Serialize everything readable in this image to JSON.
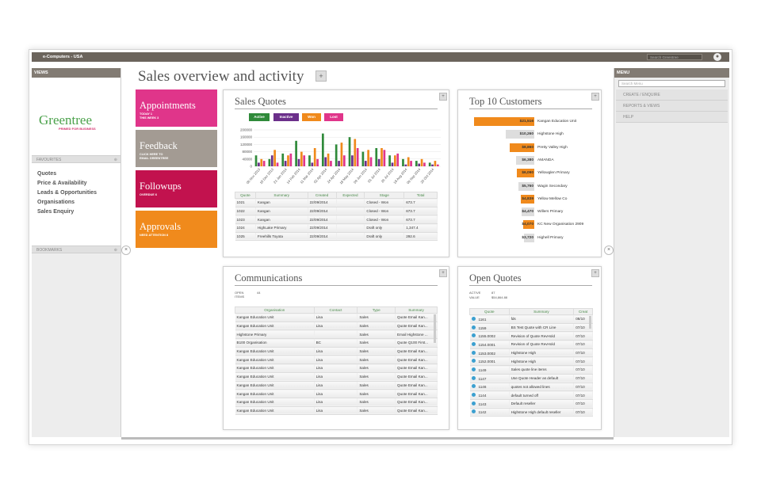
{
  "topbar": {
    "title": "e-Computers - USA",
    "search_placeholder": "Search Greentree",
    "user_icon": "user-icon"
  },
  "left": {
    "views_label": "VIEWS",
    "logo": "Greentree",
    "logo_tag": "PRIMED FOR BUSINESS",
    "favourites_label": "FAVOURITES",
    "favourites": [
      "Quotes",
      "Price & Availability",
      "Leads & Opportunities",
      "Organisations",
      "Sales Enquiry"
    ],
    "bookmarks_label": "BOOKMARKS",
    "collapse_symbol": "×"
  },
  "page": {
    "title": "Sales overview and activity",
    "add_symbol": "+"
  },
  "tiles": [
    {
      "title": "Appointments",
      "lines": [
        "TODAY  1",
        "THIS WEEK  3"
      ],
      "color": "#e0358a"
    },
    {
      "title": "Feedback",
      "lines": [
        "CLICK HERE TO",
        "EMAIL GREENTREE"
      ],
      "color": "#a39b93"
    },
    {
      "title": "Followups",
      "lines": [
        "OVERDUE  6"
      ],
      "color": "#c2124e"
    },
    {
      "title": "Approvals",
      "lines": [
        "NEED ATTENTION  8"
      ],
      "color": "#f08a1c"
    }
  ],
  "sales_quotes": {
    "title": "Sales Quotes",
    "legend": [
      {
        "label": "Active",
        "color": "#2f8a3a"
      },
      {
        "label": "Inactive",
        "color": "#6b2f8a"
      },
      {
        "label": "Won",
        "color": "#f08a1c"
      },
      {
        "label": "Lost",
        "color": "#e0358a"
      }
    ],
    "columns": [
      "Quote",
      "Summary",
      "Created",
      "Expected",
      "Stage",
      "Total"
    ],
    "rows": [
      [
        "1021",
        "Kangan",
        "22/09/2014",
        "",
        "Closed - Won",
        "673.7"
      ],
      [
        "1022",
        "Kangan",
        "22/09/2014",
        "",
        "Closed - Won",
        "673.7"
      ],
      [
        "1023",
        "Kangan",
        "22/09/2014",
        "",
        "Closed - Won",
        "673.7"
      ],
      [
        "1024",
        "HighLake Primary",
        "22/09/2014",
        "",
        "Draft only",
        "1,347.4"
      ],
      [
        "1025",
        "Freehills Toyota",
        "22/09/2014",
        "",
        "Draft only",
        "292.6"
      ]
    ]
  },
  "chart_data": {
    "type": "bar",
    "title": "Sales Quotes",
    "yticks": [
      "200000",
      "160000",
      "120000",
      "80000",
      "40000",
      "0"
    ],
    "ylim": [
      0,
      200000
    ],
    "categories": [
      "06 Nov 2013",
      "18 Dec 2013",
      "21 Jan 2014",
      "14 Feb 2014",
      "11 Mar 2014",
      "02 Apr 2014",
      "24 Apr 2014",
      "18 May 2014",
      "09 Jun 2014",
      "03 Jul 2014",
      "26 Jul 2014",
      "18 Aug 2014",
      "09 Sep 2014",
      "20 Oct 2014"
    ],
    "series": [
      {
        "name": "Active",
        "color": "#2f8a3a",
        "values": [
          60000,
          40000,
          70000,
          140000,
          60000,
          180000,
          120000,
          160000,
          80000,
          100000,
          60000,
          40000,
          30000,
          20000
        ]
      },
      {
        "name": "Inactive",
        "color": "#6b2f8a",
        "values": [
          20000,
          60000,
          30000,
          40000,
          20000,
          50000,
          30000,
          60000,
          30000,
          40000,
          20000,
          10000,
          15000,
          10000
        ]
      },
      {
        "name": "Won",
        "color": "#f08a1c",
        "values": [
          40000,
          90000,
          60000,
          80000,
          100000,
          70000,
          130000,
          150000,
          90000,
          100000,
          60000,
          50000,
          40000,
          30000
        ]
      },
      {
        "name": "Lost",
        "color": "#e0358a",
        "values": [
          30000,
          20000,
          70000,
          60000,
          40000,
          30000,
          60000,
          100000,
          50000,
          90000,
          70000,
          30000,
          20000,
          10000
        ]
      }
    ]
  },
  "top10": {
    "title": "Top 10 Customers",
    "items": [
      {
        "value": "$21,516",
        "name": "Kangan Education Unit",
        "amount": 21516
      },
      {
        "value": "$10,260",
        "name": "Highstone High",
        "amount": 10260
      },
      {
        "value": "$8,860",
        "name": "Pretty Valley High",
        "amount": 8860
      },
      {
        "value": "$6,380",
        "name": "AMANDA",
        "amount": 6380
      },
      {
        "value": "$6,090",
        "name": "Yellowglen Primary",
        "amount": 6090
      },
      {
        "value": "$5,760",
        "name": "Wagin Secondary",
        "amount": 5760
      },
      {
        "value": "$4,839",
        "name": "Yellow Mellow Co",
        "amount": 4839
      },
      {
        "value": "$4,470",
        "name": "Willers Primary",
        "amount": 4470
      },
      {
        "value": "$4,070",
        "name": "KC New Organisation 2909",
        "amount": 4070
      },
      {
        "value": "$3,720",
        "name": "Highell Primary",
        "amount": 3720
      }
    ]
  },
  "communications": {
    "title": "Communications",
    "open_label": "OPEN ITEMS",
    "open_value": "44",
    "columns": [
      "Organisation",
      "Contact",
      "Type",
      "Summary"
    ],
    "rows": [
      [
        "Kangan Education Unit",
        "Lisa",
        "Sales",
        "Quote Email Kan..."
      ],
      [
        "Kangan Education Unit",
        "Lisa",
        "Sales",
        "Quote Email Kan..."
      ],
      [
        "Highstone Primary",
        "",
        "Sales",
        "Email Highstone ..."
      ],
      [
        "B100 Organisation",
        "BC",
        "Sales",
        "Quote Q100 First..."
      ],
      [
        "Kangan Education Unit",
        "Lisa",
        "Sales",
        "Quote Email Kan..."
      ],
      [
        "Kangan Education Unit",
        "Lisa",
        "Sales",
        "Quote Email Kan..."
      ],
      [
        "Kangan Education Unit",
        "Lisa",
        "Sales",
        "Quote Email Kan..."
      ],
      [
        "Kangan Education Unit",
        "Lisa",
        "Sales",
        "Quote Email Kan..."
      ],
      [
        "Kangan Education Unit",
        "Lisa",
        "Sales",
        "Quote Email Kan..."
      ],
      [
        "Kangan Education Unit",
        "Lisa",
        "Sales",
        "Quote Email Kan..."
      ],
      [
        "Kangan Education Unit",
        "Lisa",
        "Sales",
        "Quote Email Kan..."
      ],
      [
        "Kangan Education Unit",
        "Lisa",
        "Sales",
        "Quote Email Kan..."
      ]
    ]
  },
  "open_quotes": {
    "title": "Open Quotes",
    "active_label": "ACTIVE",
    "active_value": "87",
    "value_label": "VALUE",
    "value_value": "$54,864.88",
    "columns": [
      "Quote",
      "Summary",
      "Creat"
    ],
    "rows": [
      [
        "1161",
        "fds",
        "08/10"
      ],
      [
        "1159",
        "BS Test Quote with CR Line",
        "07/10"
      ],
      [
        "1155.0002",
        "Revision of Quote RevHold",
        "07/10"
      ],
      [
        "1154.0001",
        "Revision of Quote RevHold",
        "07/10"
      ],
      [
        "1153.0002",
        "Highstone High",
        "07/10"
      ],
      [
        "1152.0001",
        "Highstone High",
        "07/10"
      ],
      [
        "1149",
        "Sales quote line items",
        "07/10"
      ],
      [
        "1147",
        "Use Quote Header as default",
        "07/10"
      ],
      [
        "1146",
        "quotes not allowed lines",
        "07/10"
      ],
      [
        "1144",
        "default turned off",
        "07/10"
      ],
      [
        "1143",
        "Default reseller",
        "07/10"
      ],
      [
        "1142",
        "Highstone High default reseller",
        "07/10"
      ]
    ]
  },
  "right": {
    "menu_label": "MENU",
    "search_placeholder": "Search Menu",
    "items": [
      "CREATE / ENQUIRE",
      "REPORTS & VIEWS",
      "HELP"
    ]
  }
}
